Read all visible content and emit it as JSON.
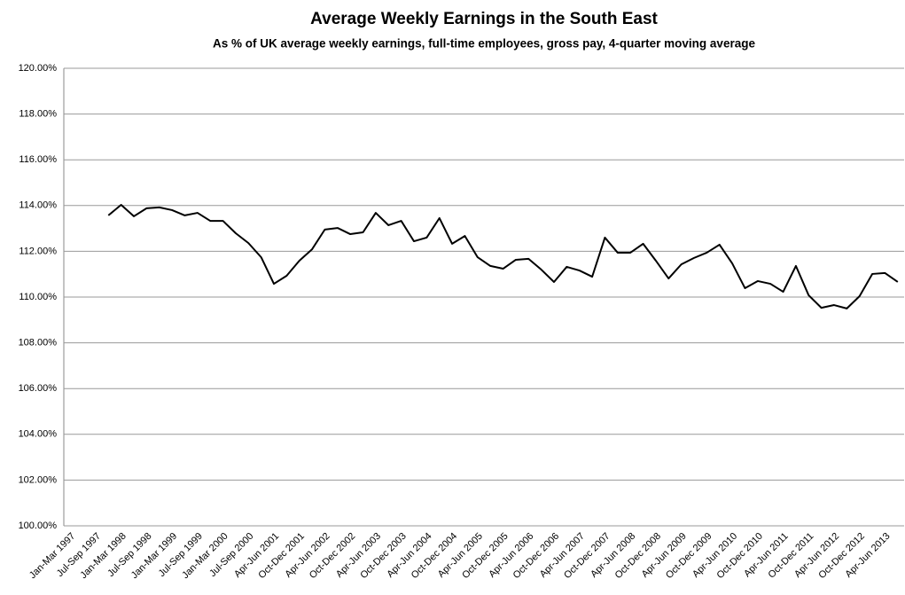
{
  "chart_data": {
    "type": "line",
    "title": "Average Weekly Earnings in the South East",
    "subtitle": "As % of UK average weekly earnings, full-time employees,  gross pay, 4-quarter moving average",
    "categories": [
      "Jan-Mar 1997",
      null,
      "Jul-Sep 1997",
      null,
      "Jan-Mar 1998",
      null,
      "Jul-Sep 1998",
      null,
      "Jan-Mar 1999",
      null,
      "Jul-Sep 1999",
      null,
      "Jan-Mar 2000",
      null,
      "Jul-Sep 2000",
      null,
      "Apr-Jun 2001",
      null,
      "Oct-Dec 2001",
      null,
      "Apr-Jun 2002",
      null,
      "Oct-Dec 2002",
      null,
      "Apr-Jun 2003",
      null,
      "Oct-Dec 2003",
      null,
      "Apr-Jun 2004",
      null,
      "Oct-Dec 2004",
      null,
      "Apr-Jun 2005",
      null,
      "Oct-Dec 2005",
      null,
      "Apr-Jun 2006",
      null,
      "Oct-Dec 2006",
      null,
      "Apr-Jun 2007",
      null,
      "Oct-Dec 2007",
      null,
      "Apr-Jun 2008",
      null,
      "Oct-Dec 2008",
      null,
      "Apr-Jun 2009",
      null,
      "Oct-Dec 2009",
      null,
      "Apr-Jun 2010",
      null,
      "Oct-Dec 2010",
      null,
      "Apr-Jun 2011",
      null,
      "Oct-Dec 2011",
      null,
      "Apr-Jun 2012",
      null,
      "Oct-Dec 2012",
      null,
      "Apr-Jun 2013",
      null
    ],
    "values": [
      null,
      null,
      null,
      113.57,
      114.03,
      113.53,
      113.88,
      113.92,
      113.8,
      113.57,
      113.68,
      113.33,
      113.33,
      112.79,
      112.36,
      111.74,
      110.58,
      110.93,
      111.59,
      112.09,
      112.95,
      113.02,
      112.75,
      112.83,
      113.68,
      113.14,
      113.33,
      112.44,
      112.6,
      113.45,
      112.33,
      112.67,
      111.74,
      111.36,
      111.24,
      111.63,
      111.67,
      111.2,
      110.66,
      111.32,
      111.16,
      110.89,
      112.6,
      111.94,
      111.94,
      112.33,
      111.59,
      110.81,
      111.43,
      111.71,
      111.94,
      112.29,
      111.47,
      110.39,
      110.7,
      110.58,
      110.23,
      111.36,
      110.08,
      109.53,
      109.65,
      109.5,
      110.04,
      111.01,
      111.05,
      110.66
    ],
    "color": "#000000",
    "ylim": [
      100,
      120
    ],
    "yticks": [
      {
        "value": 100,
        "label": "100.00%"
      },
      {
        "value": 102,
        "label": "102.00%"
      },
      {
        "value": 104,
        "label": "104.00%"
      },
      {
        "value": 106,
        "label": "106.00%"
      },
      {
        "value": 108,
        "label": "108.00%"
      },
      {
        "value": 110,
        "label": "110.00%"
      },
      {
        "value": 112,
        "label": "112.00%"
      },
      {
        "value": 114,
        "label": "114.00%"
      },
      {
        "value": 116,
        "label": "116.00%"
      },
      {
        "value": 118,
        "label": "118.00%"
      },
      {
        "value": 120,
        "label": "120.00%"
      }
    ],
    "grid": true
  }
}
